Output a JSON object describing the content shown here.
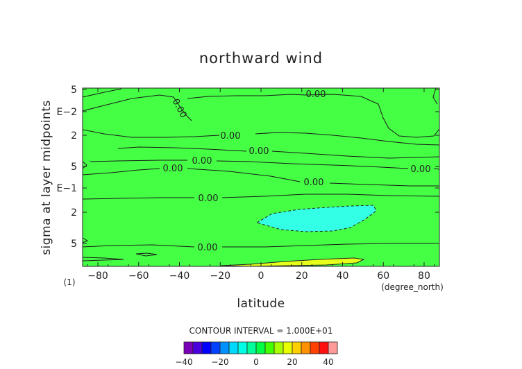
{
  "chart_data": {
    "type": "contour",
    "title": "northward wind",
    "xlabel": "latitude",
    "xunit": "(degree_north)",
    "ylabel": "sigma at layer midpoints",
    "yaxis_multiplier_label": "(1)",
    "xlim": [
      -87.5,
      87.5
    ],
    "xticks": [
      -80,
      -60,
      -40,
      -20,
      0,
      20,
      40,
      60,
      80
    ],
    "yaxis_scale": "log",
    "yticks": [
      "5",
      "E−2",
      "2",
      "5",
      "E−1",
      "2",
      "5"
    ],
    "contour_interval_text": "CONTOUR INTERVAL = 1.000E+01",
    "contour_labels": [
      "0.00",
      "0.00",
      "0.00",
      "0.00",
      "0.00",
      "0.00",
      "0.00",
      "0.00",
      "0.00"
    ],
    "colorbar": {
      "levels": [
        -40,
        -35,
        -30,
        -25,
        -20,
        -15,
        -10,
        -5,
        0,
        5,
        10,
        15,
        20,
        25,
        30,
        35,
        40,
        45
      ],
      "colors": [
        "#7a00b8",
        "#4b00e0",
        "#0000ff",
        "#0040ff",
        "#0090ff",
        "#00d8ff",
        "#00ffe4",
        "#00ff9a",
        "#00ff44",
        "#44ff00",
        "#a8ff00",
        "#e8ff00",
        "#ffd000",
        "#ff9000",
        "#ff4000",
        "#ff1010",
        "#ff9a9a"
      ],
      "tick_labels": [
        "−40",
        "−20",
        "0",
        "20",
        "40"
      ]
    },
    "regions": [
      {
        "name": "background",
        "level_range": [
          0,
          10
        ],
        "color": "#44ff44"
      },
      {
        "name": "negative-region",
        "level_range": [
          -10,
          0
        ],
        "color": "#33ffe6",
        "lat_range": [
          -2,
          57
        ]
      },
      {
        "name": "positive-region",
        "level_range": [
          10,
          20
        ],
        "color": "#e6ff1a",
        "lat_range": [
          -18,
          52
        ]
      }
    ]
  }
}
